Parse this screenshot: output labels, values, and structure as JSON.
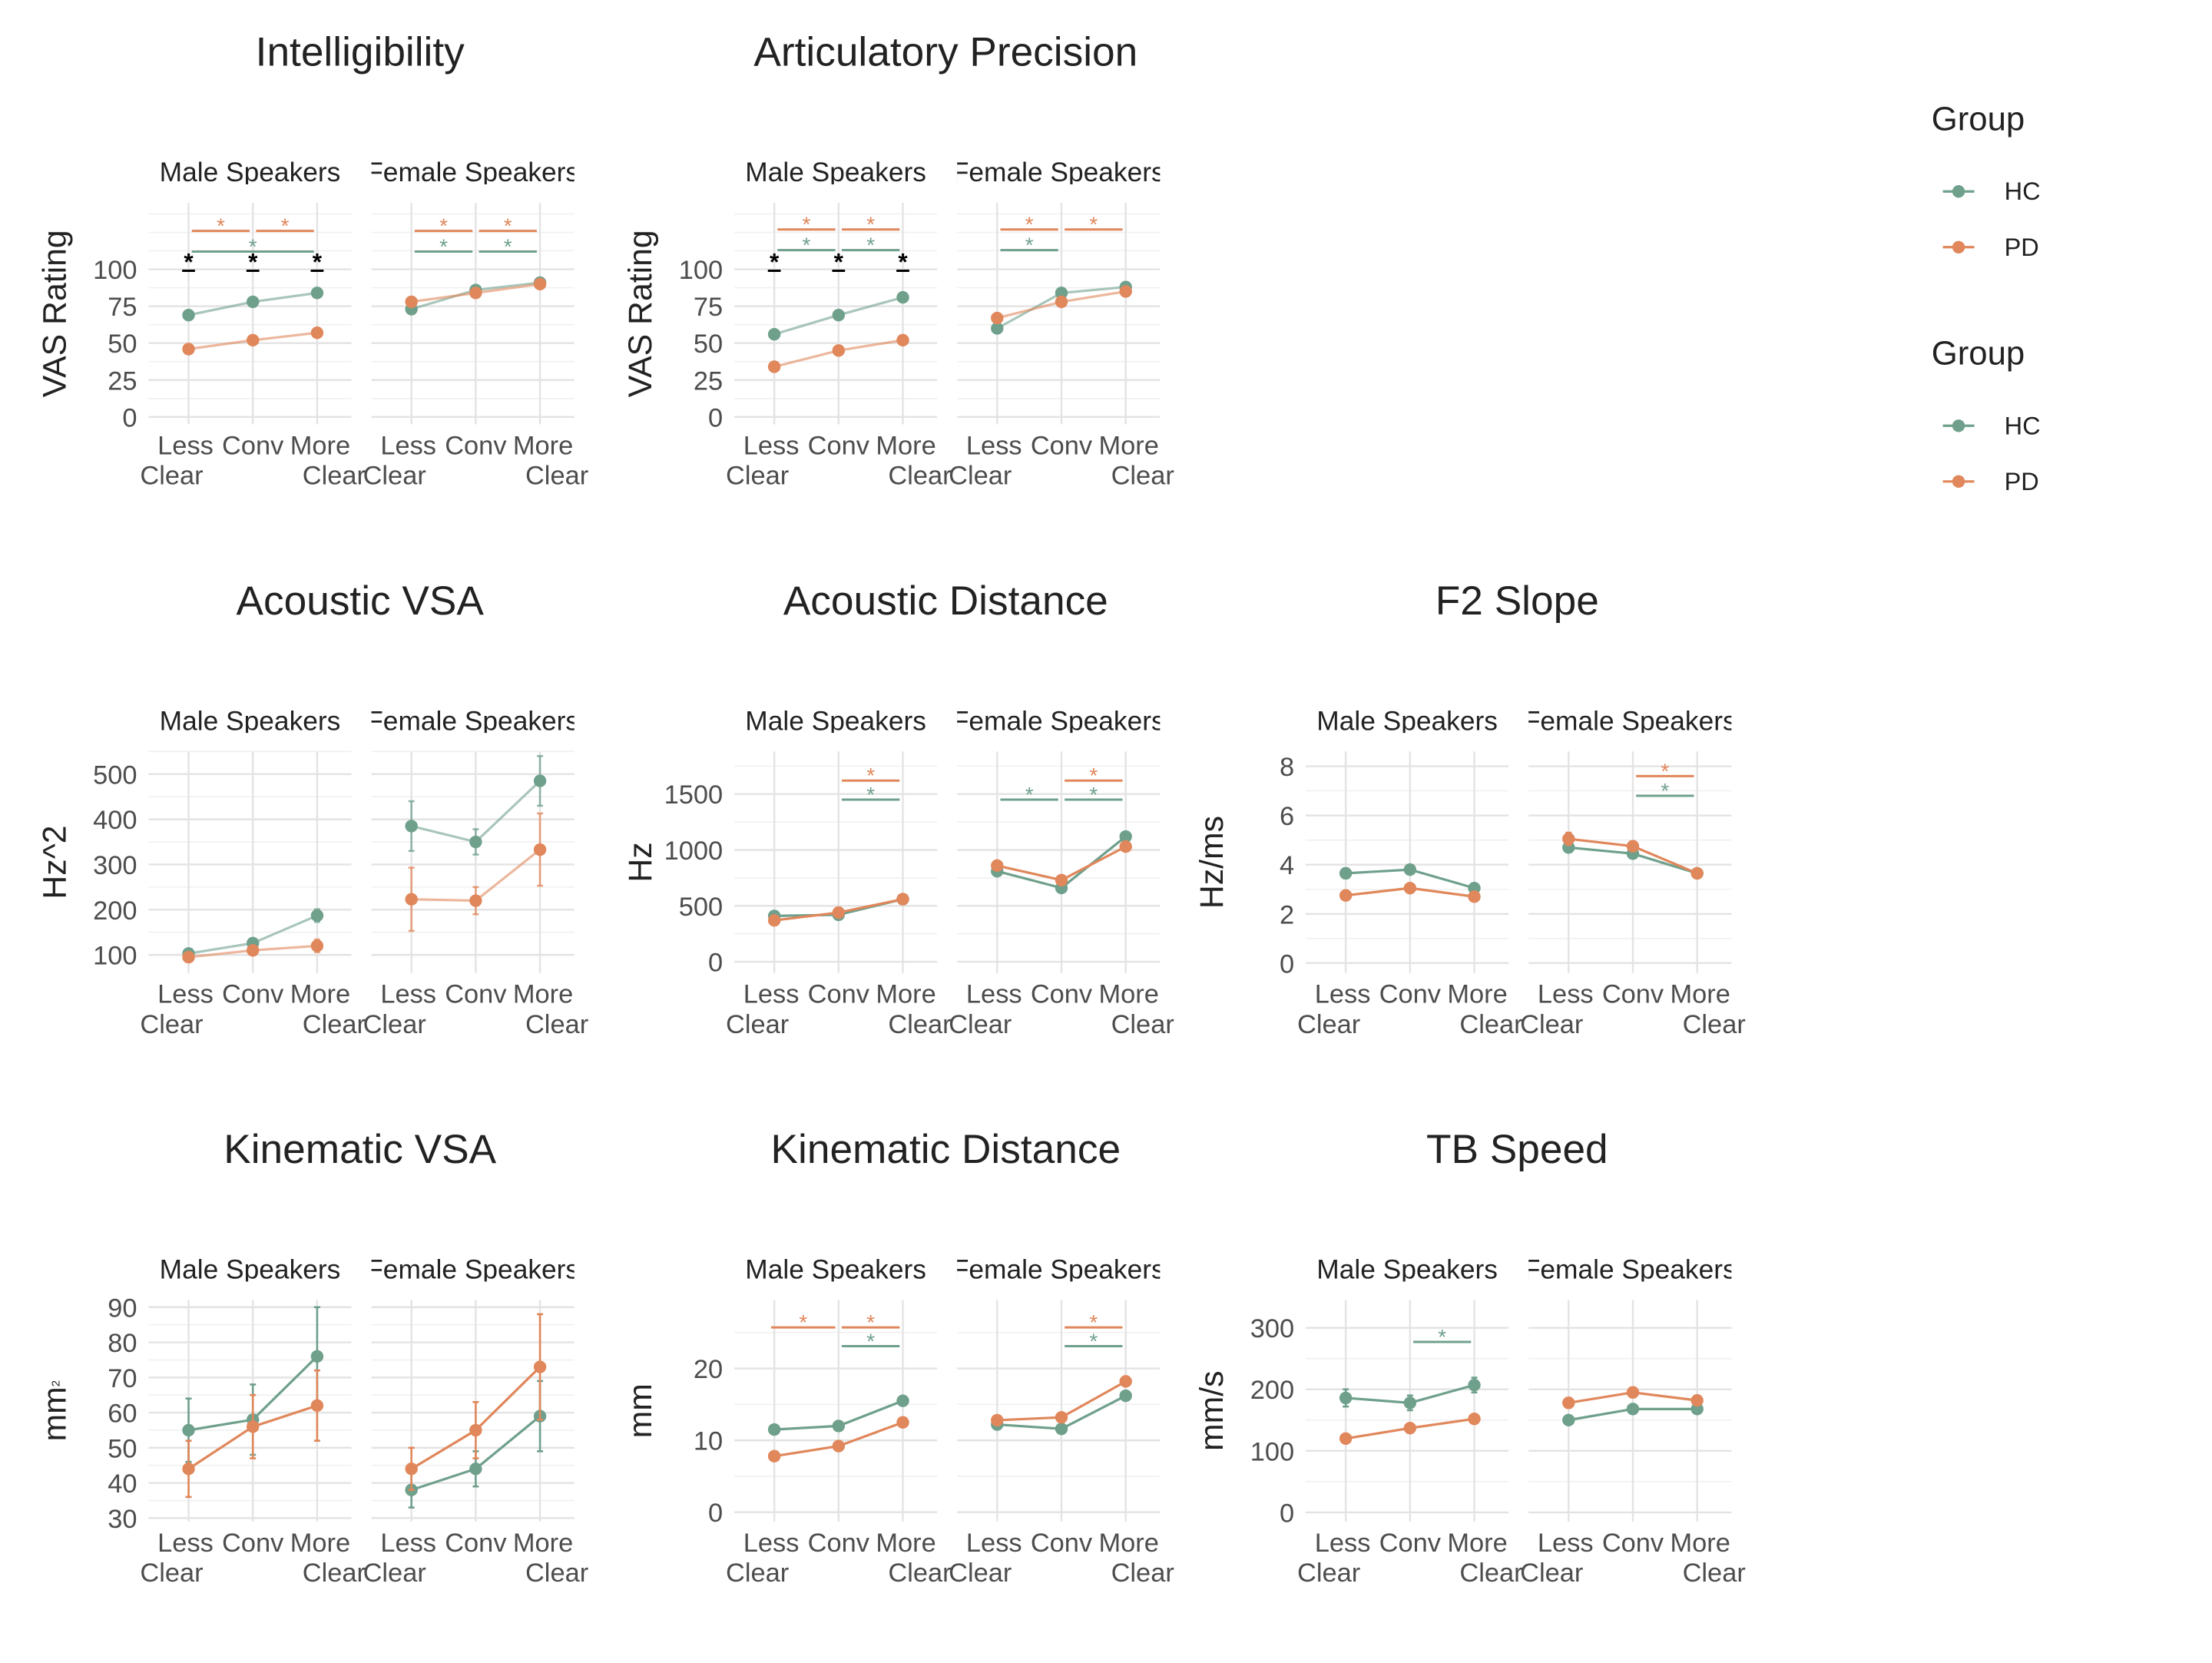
{
  "colors": {
    "HC": "#6fa08c",
    "PD": "#e0875b",
    "grid": "#e6e6e6",
    "text": "#222222",
    "tick": "#4d4d4d"
  },
  "legends": [
    {
      "title": "Group",
      "items": [
        "HC",
        "PD"
      ]
    },
    {
      "title": "Group",
      "items": [
        "HC",
        "PD"
      ]
    }
  ],
  "x_categories": [
    "Less\nClear",
    "Conv",
    "More\nClear"
  ],
  "chart_data": [
    {
      "type": "line",
      "title": "Intelligibility",
      "ylabel": "VAS Rating",
      "yticks": [
        0,
        25,
        50,
        75,
        100
      ],
      "ylim": [
        -5,
        145
      ],
      "error_bars": false,
      "facets": [
        {
          "label": "Male Speakers",
          "faded": true,
          "series": [
            {
              "name": "HC",
              "values": [
                69,
                78,
                84
              ]
            },
            {
              "name": "PD",
              "values": [
                46,
                52,
                57
              ]
            }
          ],
          "brackets": [
            {
              "color": "PD",
              "from": 0.05,
              "to": 0.95,
              "y": 126,
              "label": "*"
            },
            {
              "color": "PD",
              "from": 1.05,
              "to": 1.95,
              "y": 126,
              "label": "*"
            },
            {
              "color": "HC",
              "from": 0.05,
              "to": 1.95,
              "y": 112,
              "label": "*"
            },
            {
              "color": "black",
              "from": -0.1,
              "to": 0.1,
              "y": 99,
              "label": "*"
            },
            {
              "color": "black",
              "from": 0.9,
              "to": 1.1,
              "y": 99,
              "label": "*"
            },
            {
              "color": "black",
              "from": 1.9,
              "to": 2.1,
              "y": 99,
              "label": "*"
            }
          ]
        },
        {
          "label": "Female Speakers",
          "faded": true,
          "series": [
            {
              "name": "HC",
              "values": [
                73,
                86,
                91
              ]
            },
            {
              "name": "PD",
              "values": [
                78,
                84,
                90
              ]
            }
          ],
          "brackets": [
            {
              "color": "PD",
              "from": 0.05,
              "to": 0.95,
              "y": 126,
              "label": "*"
            },
            {
              "color": "PD",
              "from": 1.05,
              "to": 1.95,
              "y": 126,
              "label": "*"
            },
            {
              "color": "HC",
              "from": 0.05,
              "to": 0.95,
              "y": 112,
              "label": "*"
            },
            {
              "color": "HC",
              "from": 1.05,
              "to": 1.95,
              "y": 112,
              "label": "*"
            }
          ]
        }
      ]
    },
    {
      "type": "line",
      "title": "Articulatory Precision",
      "ylabel": "VAS Rating",
      "yticks": [
        0,
        25,
        50,
        75,
        100
      ],
      "ylim": [
        -5,
        145
      ],
      "error_bars": false,
      "facets": [
        {
          "label": "Male Speakers",
          "faded": true,
          "series": [
            {
              "name": "HC",
              "values": [
                56,
                69,
                81
              ]
            },
            {
              "name": "PD",
              "values": [
                34,
                45,
                52
              ]
            }
          ],
          "brackets": [
            {
              "color": "PD",
              "from": 0.05,
              "to": 0.95,
              "y": 127,
              "label": "*"
            },
            {
              "color": "PD",
              "from": 1.05,
              "to": 1.95,
              "y": 127,
              "label": "*"
            },
            {
              "color": "HC",
              "from": 0.05,
              "to": 0.95,
              "y": 113,
              "label": "*"
            },
            {
              "color": "HC",
              "from": 1.05,
              "to": 1.95,
              "y": 113,
              "label": "*"
            },
            {
              "color": "black",
              "from": -0.1,
              "to": 0.1,
              "y": 99,
              "label": "*"
            },
            {
              "color": "black",
              "from": 0.9,
              "to": 1.1,
              "y": 99,
              "label": "*"
            },
            {
              "color": "black",
              "from": 1.9,
              "to": 2.1,
              "y": 99,
              "label": "*"
            }
          ]
        },
        {
          "label": "Female Speakers",
          "faded": true,
          "series": [
            {
              "name": "HC",
              "values": [
                60,
                84,
                88
              ]
            },
            {
              "name": "PD",
              "values": [
                67,
                78,
                85
              ]
            }
          ],
          "brackets": [
            {
              "color": "PD",
              "from": 0.05,
              "to": 0.95,
              "y": 127,
              "label": "*"
            },
            {
              "color": "PD",
              "from": 1.05,
              "to": 1.95,
              "y": 127,
              "label": "*"
            },
            {
              "color": "HC",
              "from": 0.05,
              "to": 0.95,
              "y": 113,
              "label": "*"
            }
          ]
        }
      ]
    },
    {
      "type": "line",
      "title": "Acoustic VSA",
      "ylabel": "Hz^2",
      "yticks": [
        100,
        200,
        300,
        400,
        500
      ],
      "ylim": [
        60,
        550
      ],
      "error_bars": true,
      "facets": [
        {
          "label": "Male Speakers",
          "faded": true,
          "series": [
            {
              "name": "HC",
              "values": [
                103,
                126,
                187
              ],
              "err": [
                8,
                8,
                14
              ]
            },
            {
              "name": "PD",
              "values": [
                95,
                110,
                120
              ],
              "err": [
                8,
                10,
                14
              ]
            }
          ],
          "brackets": []
        },
        {
          "label": "Female Speakers",
          "faded": true,
          "series": [
            {
              "name": "HC",
              "values": [
                385,
                350,
                485
              ],
              "err": [
                55,
                28,
                55
              ]
            },
            {
              "name": "PD",
              "values": [
                223,
                220,
                333
              ],
              "err": [
                70,
                30,
                80
              ]
            }
          ],
          "brackets": []
        }
      ]
    },
    {
      "type": "line",
      "title": "Acoustic Distance",
      "ylabel": "Hz",
      "yticks": [
        0,
        500,
        1000,
        1500
      ],
      "ylim": [
        -100,
        1880
      ],
      "error_bars": true,
      "facets": [
        {
          "label": "Male Speakers",
          "faded": false,
          "series": [
            {
              "name": "HC",
              "values": [
                410,
                420,
                560
              ],
              "err": [
                20,
                20,
                25
              ]
            },
            {
              "name": "PD",
              "values": [
                370,
                440,
                560
              ],
              "err": [
                20,
                20,
                25
              ]
            }
          ],
          "brackets": [
            {
              "color": "PD",
              "from": 1.05,
              "to": 1.95,
              "y": 1620,
              "label": "*"
            },
            {
              "color": "HC",
              "from": 1.05,
              "to": 1.95,
              "y": 1450,
              "label": "*"
            }
          ]
        },
        {
          "label": "Female Speakers",
          "faded": false,
          "series": [
            {
              "name": "HC",
              "values": [
                810,
                660,
                1120
              ],
              "err": [
                30,
                20,
                30
              ]
            },
            {
              "name": "PD",
              "values": [
                860,
                730,
                1030
              ],
              "err": [
                30,
                20,
                30
              ]
            }
          ],
          "brackets": [
            {
              "color": "PD",
              "from": 1.05,
              "to": 1.95,
              "y": 1620,
              "label": "*"
            },
            {
              "color": "HC",
              "from": 0.05,
              "to": 0.95,
              "y": 1450,
              "label": "*"
            },
            {
              "color": "HC",
              "from": 1.05,
              "to": 1.95,
              "y": 1450,
              "label": "*"
            }
          ]
        }
      ]
    },
    {
      "type": "line",
      "title": "F2 Slope",
      "ylabel": "Hz/ms",
      "yticks": [
        0,
        2,
        4,
        6,
        8
      ],
      "ylim": [
        -0.4,
        8.6
      ],
      "error_bars": true,
      "facets": [
        {
          "label": "Male Speakers",
          "faded": false,
          "series": [
            {
              "name": "HC",
              "values": [
                3.65,
                3.8,
                3.05
              ],
              "err": [
                0.2,
                0.12,
                0.12
              ]
            },
            {
              "name": "PD",
              "values": [
                2.75,
                3.05,
                2.7
              ],
              "err": [
                0.1,
                0.1,
                0.1
              ]
            }
          ],
          "brackets": []
        },
        {
          "label": "Female Speakers",
          "faded": false,
          "series": [
            {
              "name": "HC",
              "values": [
                4.7,
                4.45,
                3.65
              ],
              "err": [
                0.12,
                0.12,
                0.1
              ]
            },
            {
              "name": "PD",
              "values": [
                5.05,
                4.75,
                3.65
              ],
              "err": [
                0.25,
                0.2,
                0.1
              ]
            }
          ],
          "brackets": [
            {
              "color": "PD",
              "from": 1.05,
              "to": 1.95,
              "y": 7.6,
              "label": "*"
            },
            {
              "color": "HC",
              "from": 1.05,
              "to": 1.95,
              "y": 6.8,
              "label": "*"
            }
          ]
        }
      ]
    },
    {
      "type": "line",
      "title": "Kinematic VSA",
      "ylabel": "mm²",
      "yticks": [
        30,
        40,
        50,
        60,
        70,
        80,
        90
      ],
      "ylim": [
        29,
        92
      ],
      "error_bars": true,
      "facets": [
        {
          "label": "Male Speakers",
          "faded": false,
          "series": [
            {
              "name": "HC",
              "values": [
                55,
                58,
                76
              ],
              "err": [
                9,
                10,
                14
              ]
            },
            {
              "name": "PD",
              "values": [
                44,
                56,
                62
              ],
              "err": [
                8,
                9,
                10
              ]
            }
          ],
          "brackets": []
        },
        {
          "label": "Female Speakers",
          "faded": false,
          "series": [
            {
              "name": "HC",
              "values": [
                38,
                44,
                59
              ],
              "err": [
                5,
                5,
                10
              ]
            },
            {
              "name": "PD",
              "values": [
                44,
                55,
                73
              ],
              "err": [
                6,
                8,
                15
              ]
            }
          ],
          "brackets": []
        }
      ]
    },
    {
      "type": "line",
      "title": "Kinematic Distance",
      "ylabel": "mm",
      "yticks": [
        0,
        10,
        20
      ],
      "ylim": [
        -1.3,
        29.5
      ],
      "error_bars": true,
      "facets": [
        {
          "label": "Male Speakers",
          "faded": false,
          "series": [
            {
              "name": "HC",
              "values": [
                11.5,
                12,
                15.5
              ],
              "err": [
                0.4,
                0.4,
                0.5
              ]
            },
            {
              "name": "PD",
              "values": [
                7.8,
                9.2,
                12.5
              ],
              "err": [
                0.3,
                0.3,
                0.4
              ]
            }
          ],
          "brackets": [
            {
              "color": "PD",
              "from": -0.05,
              "to": 0.95,
              "y": 25.7,
              "label": "*"
            },
            {
              "color": "PD",
              "from": 1.05,
              "to": 1.95,
              "y": 25.7,
              "label": "*"
            },
            {
              "color": "HC",
              "from": 1.05,
              "to": 1.95,
              "y": 23.1,
              "label": "*"
            }
          ]
        },
        {
          "label": "Female Speakers",
          "faded": false,
          "series": [
            {
              "name": "HC",
              "values": [
                12.2,
                11.6,
                16.2
              ],
              "err": [
                0.4,
                0.4,
                0.5
              ]
            },
            {
              "name": "PD",
              "values": [
                12.8,
                13.2,
                18.2
              ],
              "err": [
                0.4,
                0.4,
                0.5
              ]
            }
          ],
          "brackets": [
            {
              "color": "PD",
              "from": 1.05,
              "to": 1.95,
              "y": 25.7,
              "label": "*"
            },
            {
              "color": "HC",
              "from": 1.05,
              "to": 1.95,
              "y": 23.1,
              "label": "*"
            }
          ]
        }
      ]
    },
    {
      "type": "line",
      "title": "TB Speed",
      "ylabel": "mm/s",
      "yticks": [
        0,
        100,
        200,
        300
      ],
      "ylim": [
        -15,
        345
      ],
      "error_bars": true,
      "facets": [
        {
          "label": "Male Speakers",
          "faded": false,
          "series": [
            {
              "name": "HC",
              "values": [
                186,
                178,
                207
              ],
              "err": [
                14,
                12,
                12
              ]
            },
            {
              "name": "PD",
              "values": [
                120,
                137,
                152
              ],
              "err": [
                5,
                5,
                5
              ]
            }
          ],
          "brackets": [
            {
              "color": "HC",
              "from": 1.05,
              "to": 1.95,
              "y": 277,
              "label": "*"
            }
          ]
        },
        {
          "label": "Female Speakers",
          "faded": false,
          "series": [
            {
              "name": "HC",
              "values": [
                150,
                168,
                168
              ],
              "err": [
                5,
                5,
                5
              ]
            },
            {
              "name": "PD",
              "values": [
                178,
                195,
                182
              ],
              "err": [
                8,
                8,
                6
              ]
            }
          ],
          "brackets": []
        }
      ]
    }
  ]
}
